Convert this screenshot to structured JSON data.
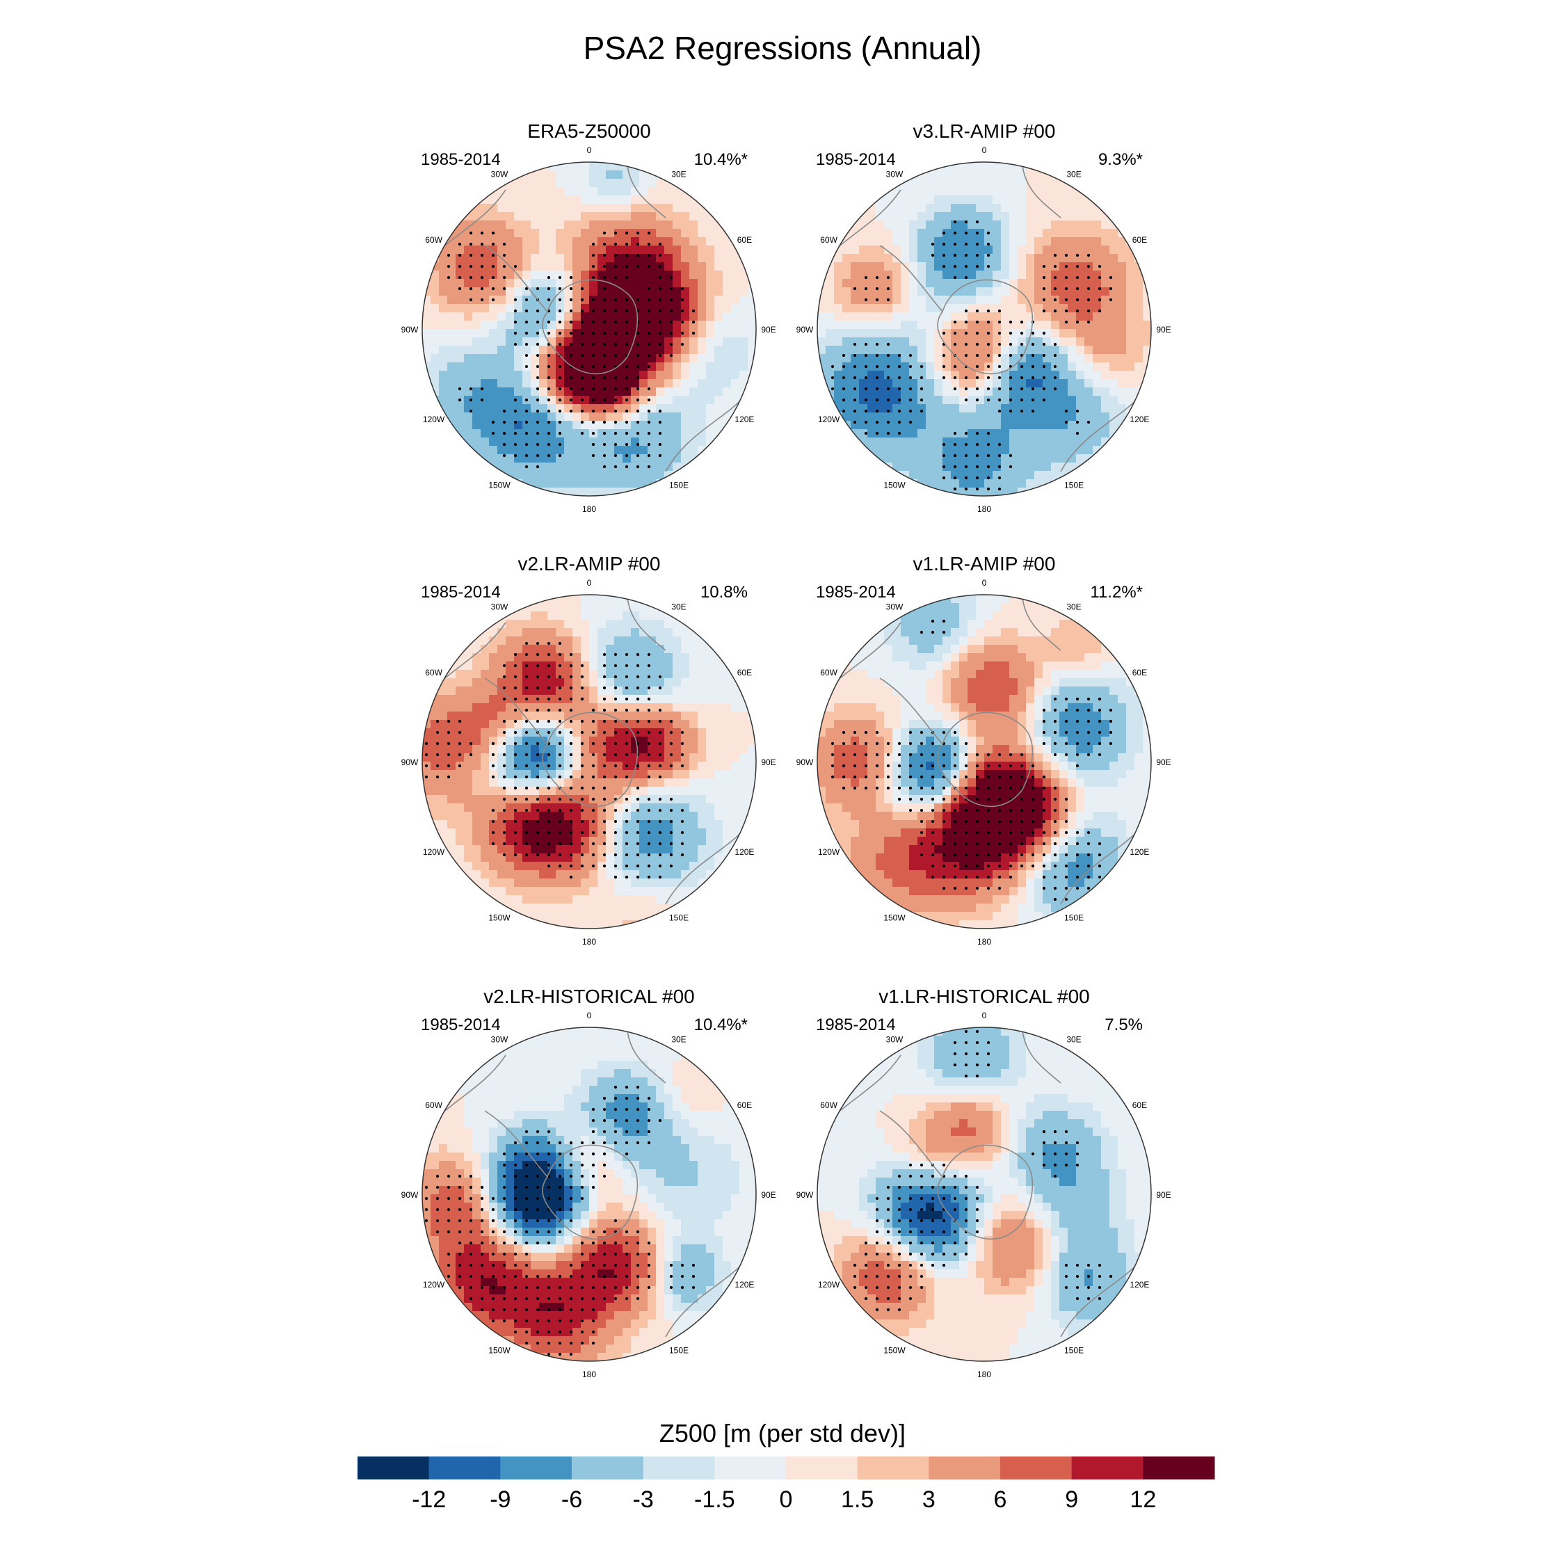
{
  "chart_data": {
    "type": "polar_stereographic_maps",
    "title": "PSA2 Regressions (Annual)",
    "colorbar": {
      "label": "Z500 [m (per std dev)]",
      "ticks": [
        "-12",
        "-9",
        "-6",
        "-3",
        "-1.5",
        "0",
        "1.5",
        "3",
        "6",
        "9",
        "12"
      ],
      "levels": [
        -12,
        -9,
        -6,
        -3,
        -1.5,
        0,
        1.5,
        3,
        6,
        9,
        12
      ],
      "colors": [
        "#053061",
        "#2166ac",
        "#4393c3",
        "#92c5de",
        "#d1e5f0",
        "#e8f0f5",
        "#fbe5da",
        "#f7c2a6",
        "#ea9a7c",
        "#d6604d",
        "#b2182b",
        "#67001f"
      ]
    },
    "longitude_labels": [
      "0",
      "30E",
      "60E",
      "90E",
      "120E",
      "150E",
      "180",
      "150W",
      "120W",
      "90W",
      "60W",
      "30W"
    ],
    "panels": [
      {
        "title": "ERA5-Z50000",
        "period": "1985-2014",
        "pct": "10.4%*",
        "blobs": [
          {
            "lon": 80,
            "r": 0.35,
            "v": 11,
            "s": 0.22,
            "sig": true
          },
          {
            "lon": 30,
            "r": 0.45,
            "v": 7,
            "s": 0.25,
            "sig": true
          },
          {
            "lon": 55,
            "r": 0.35,
            "v": 8,
            "s": 0.2,
            "sig": false
          },
          {
            "lon": 130,
            "r": 0.12,
            "v": 14,
            "s": 0.2,
            "sig": true
          },
          {
            "lon": 165,
            "r": 0.35,
            "v": 14,
            "s": 0.18,
            "sig": true
          },
          {
            "lon": 210,
            "r": 0.2,
            "v": 12,
            "s": 0.2,
            "sig": true
          },
          {
            "lon": 280,
            "r": 0.2,
            "v": -13,
            "s": 0.2,
            "sig": true
          },
          {
            "lon": 300,
            "r": 0.75,
            "v": 8,
            "s": 0.2,
            "sig": true
          },
          {
            "lon": 210,
            "r": 0.7,
            "v": -8,
            "s": 0.22,
            "sig": true
          },
          {
            "lon": 160,
            "r": 0.65,
            "v": -8,
            "s": 0.25,
            "sig": true
          },
          {
            "lon": 240,
            "r": 0.8,
            "v": -5,
            "s": 0.22,
            "sig": true
          },
          {
            "lon": 10,
            "r": 0.9,
            "v": -4,
            "s": 0.15,
            "sig": true
          },
          {
            "lon": 100,
            "r": 0.75,
            "v": -3,
            "s": 0.2,
            "sig": false
          }
        ]
      },
      {
        "title": "v3.LR-AMIP  #00",
        "period": "1985-2014",
        "pct": "9.3%*",
        "blobs": [
          {
            "lon": 65,
            "r": 0.6,
            "v": 8,
            "s": 0.22,
            "sig": true
          },
          {
            "lon": 180,
            "r": 0.15,
            "v": 14,
            "s": 0.2,
            "sig": true
          },
          {
            "lon": 140,
            "r": 0.3,
            "v": -13,
            "s": 0.2,
            "sig": true
          },
          {
            "lon": 345,
            "r": 0.5,
            "v": -8,
            "s": 0.18,
            "sig": true
          },
          {
            "lon": 290,
            "r": 0.7,
            "v": 6,
            "s": 0.16,
            "sig": true
          },
          {
            "lon": 240,
            "r": 0.75,
            "v": -10,
            "s": 0.25,
            "sig": true
          },
          {
            "lon": 185,
            "r": 0.8,
            "v": -7,
            "s": 0.25,
            "sig": true
          },
          {
            "lon": 135,
            "r": 0.75,
            "v": -5,
            "s": 0.22,
            "sig": true
          },
          {
            "lon": 310,
            "r": 0.2,
            "v": -3,
            "s": 0.25,
            "sig": false
          },
          {
            "lon": 100,
            "r": 0.75,
            "v": 3,
            "s": 0.18,
            "sig": false
          }
        ]
      },
      {
        "title": "v2.LR-AMIP  #00",
        "period": "1985-2014",
        "pct": "10.8%",
        "blobs": [
          {
            "lon": 330,
            "r": 0.55,
            "v": 12,
            "s": 0.2,
            "sig": true
          },
          {
            "lon": 25,
            "r": 0.55,
            "v": -7,
            "s": 0.22,
            "sig": true
          },
          {
            "lon": 275,
            "r": 0.3,
            "v": -14,
            "s": 0.2,
            "sig": true
          },
          {
            "lon": 45,
            "r": 0.15,
            "v": 9,
            "s": 0.2,
            "sig": true
          },
          {
            "lon": 75,
            "r": 0.4,
            "v": 10,
            "s": 0.17,
            "sig": true
          },
          {
            "lon": 195,
            "r": 0.4,
            "v": 12,
            "s": 0.22,
            "sig": true
          },
          {
            "lon": 225,
            "r": 0.55,
            "v": 9,
            "s": 0.2,
            "sig": true
          },
          {
            "lon": 145,
            "r": 0.55,
            "v": -9,
            "s": 0.25,
            "sig": true
          },
          {
            "lon": 275,
            "r": 0.9,
            "v": 7,
            "s": 0.22,
            "sig": true
          },
          {
            "lon": 160,
            "r": 0.92,
            "v": 3,
            "s": 0.2,
            "sig": false
          },
          {
            "lon": 290,
            "r": 0.65,
            "v": 5,
            "s": 0.15,
            "sig": false
          }
        ]
      },
      {
        "title": "v1.LR-AMIP  #00",
        "period": "1985-2014",
        "pct": "11.2%*",
        "blobs": [
          {
            "lon": 340,
            "r": 0.85,
            "v": -5,
            "s": 0.2,
            "sig": true
          },
          {
            "lon": 5,
            "r": 0.45,
            "v": 9,
            "s": 0.2,
            "sig": false
          },
          {
            "lon": 70,
            "r": 0.6,
            "v": -8,
            "s": 0.22,
            "sig": true
          },
          {
            "lon": 255,
            "r": 0.3,
            "v": -14,
            "s": 0.2,
            "sig": true
          },
          {
            "lon": 160,
            "r": 0.2,
            "v": 12,
            "s": 0.2,
            "sig": true
          },
          {
            "lon": 190,
            "r": 0.45,
            "v": 14,
            "s": 0.24,
            "sig": true
          },
          {
            "lon": 140,
            "r": 0.4,
            "v": 10,
            "s": 0.2,
            "sig": true
          },
          {
            "lon": 140,
            "r": 0.8,
            "v": -8,
            "s": 0.22,
            "sig": true
          },
          {
            "lon": 270,
            "r": 0.75,
            "v": 8,
            "s": 0.2,
            "sig": true
          },
          {
            "lon": 220,
            "r": 0.8,
            "v": 6,
            "s": 0.22,
            "sig": false
          },
          {
            "lon": 40,
            "r": 0.9,
            "v": 3,
            "s": 0.15,
            "sig": false
          }
        ]
      },
      {
        "title": "v2.LR-HISTORICAL  #00",
        "period": "1985-2014",
        "pct": "10.4%*",
        "blobs": [
          {
            "lon": 350,
            "r": 0.2,
            "v": 7,
            "s": 0.18,
            "sig": true
          },
          {
            "lon": 290,
            "r": 0.3,
            "v": -13,
            "s": 0.2,
            "sig": true
          },
          {
            "lon": 255,
            "r": 0.35,
            "v": -10,
            "s": 0.2,
            "sig": true
          },
          {
            "lon": 25,
            "r": 0.5,
            "v": -8,
            "s": 0.2,
            "sig": true
          },
          {
            "lon": 230,
            "r": 0.8,
            "v": 11,
            "s": 0.22,
            "sig": true
          },
          {
            "lon": 195,
            "r": 0.75,
            "v": 10,
            "s": 0.22,
            "sig": true
          },
          {
            "lon": 160,
            "r": 0.45,
            "v": 11,
            "s": 0.2,
            "sig": true
          },
          {
            "lon": 265,
            "r": 0.8,
            "v": 8,
            "s": 0.2,
            "sig": true
          },
          {
            "lon": 130,
            "r": 0.75,
            "v": -6,
            "s": 0.15,
            "sig": true
          },
          {
            "lon": 80,
            "r": 0.6,
            "v": -3,
            "s": 0.25,
            "sig": false
          },
          {
            "lon": 45,
            "r": 0.8,
            "v": 2,
            "s": 0.15,
            "sig": false
          }
        ]
      },
      {
        "title": "v1.LR-HISTORICAL  #00",
        "period": "1985-2014",
        "pct": "7.5%",
        "blobs": [
          {
            "lon": 355,
            "r": 0.85,
            "v": -6,
            "s": 0.2,
            "sig": true
          },
          {
            "lon": 345,
            "r": 0.4,
            "v": 7,
            "s": 0.17,
            "sig": false
          },
          {
            "lon": 60,
            "r": 0.5,
            "v": -6,
            "s": 0.2,
            "sig": true
          },
          {
            "lon": 250,
            "r": 0.35,
            "v": -14,
            "s": 0.22,
            "sig": true
          },
          {
            "lon": 230,
            "r": 0.75,
            "v": 9,
            "s": 0.2,
            "sig": true
          },
          {
            "lon": 130,
            "r": 0.8,
            "v": -6,
            "s": 0.2,
            "sig": true
          },
          {
            "lon": 150,
            "r": 0.35,
            "v": 7,
            "s": 0.2,
            "sig": false
          },
          {
            "lon": 100,
            "r": 0.55,
            "v": -4,
            "s": 0.2,
            "sig": false
          },
          {
            "lon": 300,
            "r": 0.4,
            "v": 4,
            "s": 0.15,
            "sig": false
          }
        ]
      }
    ]
  }
}
